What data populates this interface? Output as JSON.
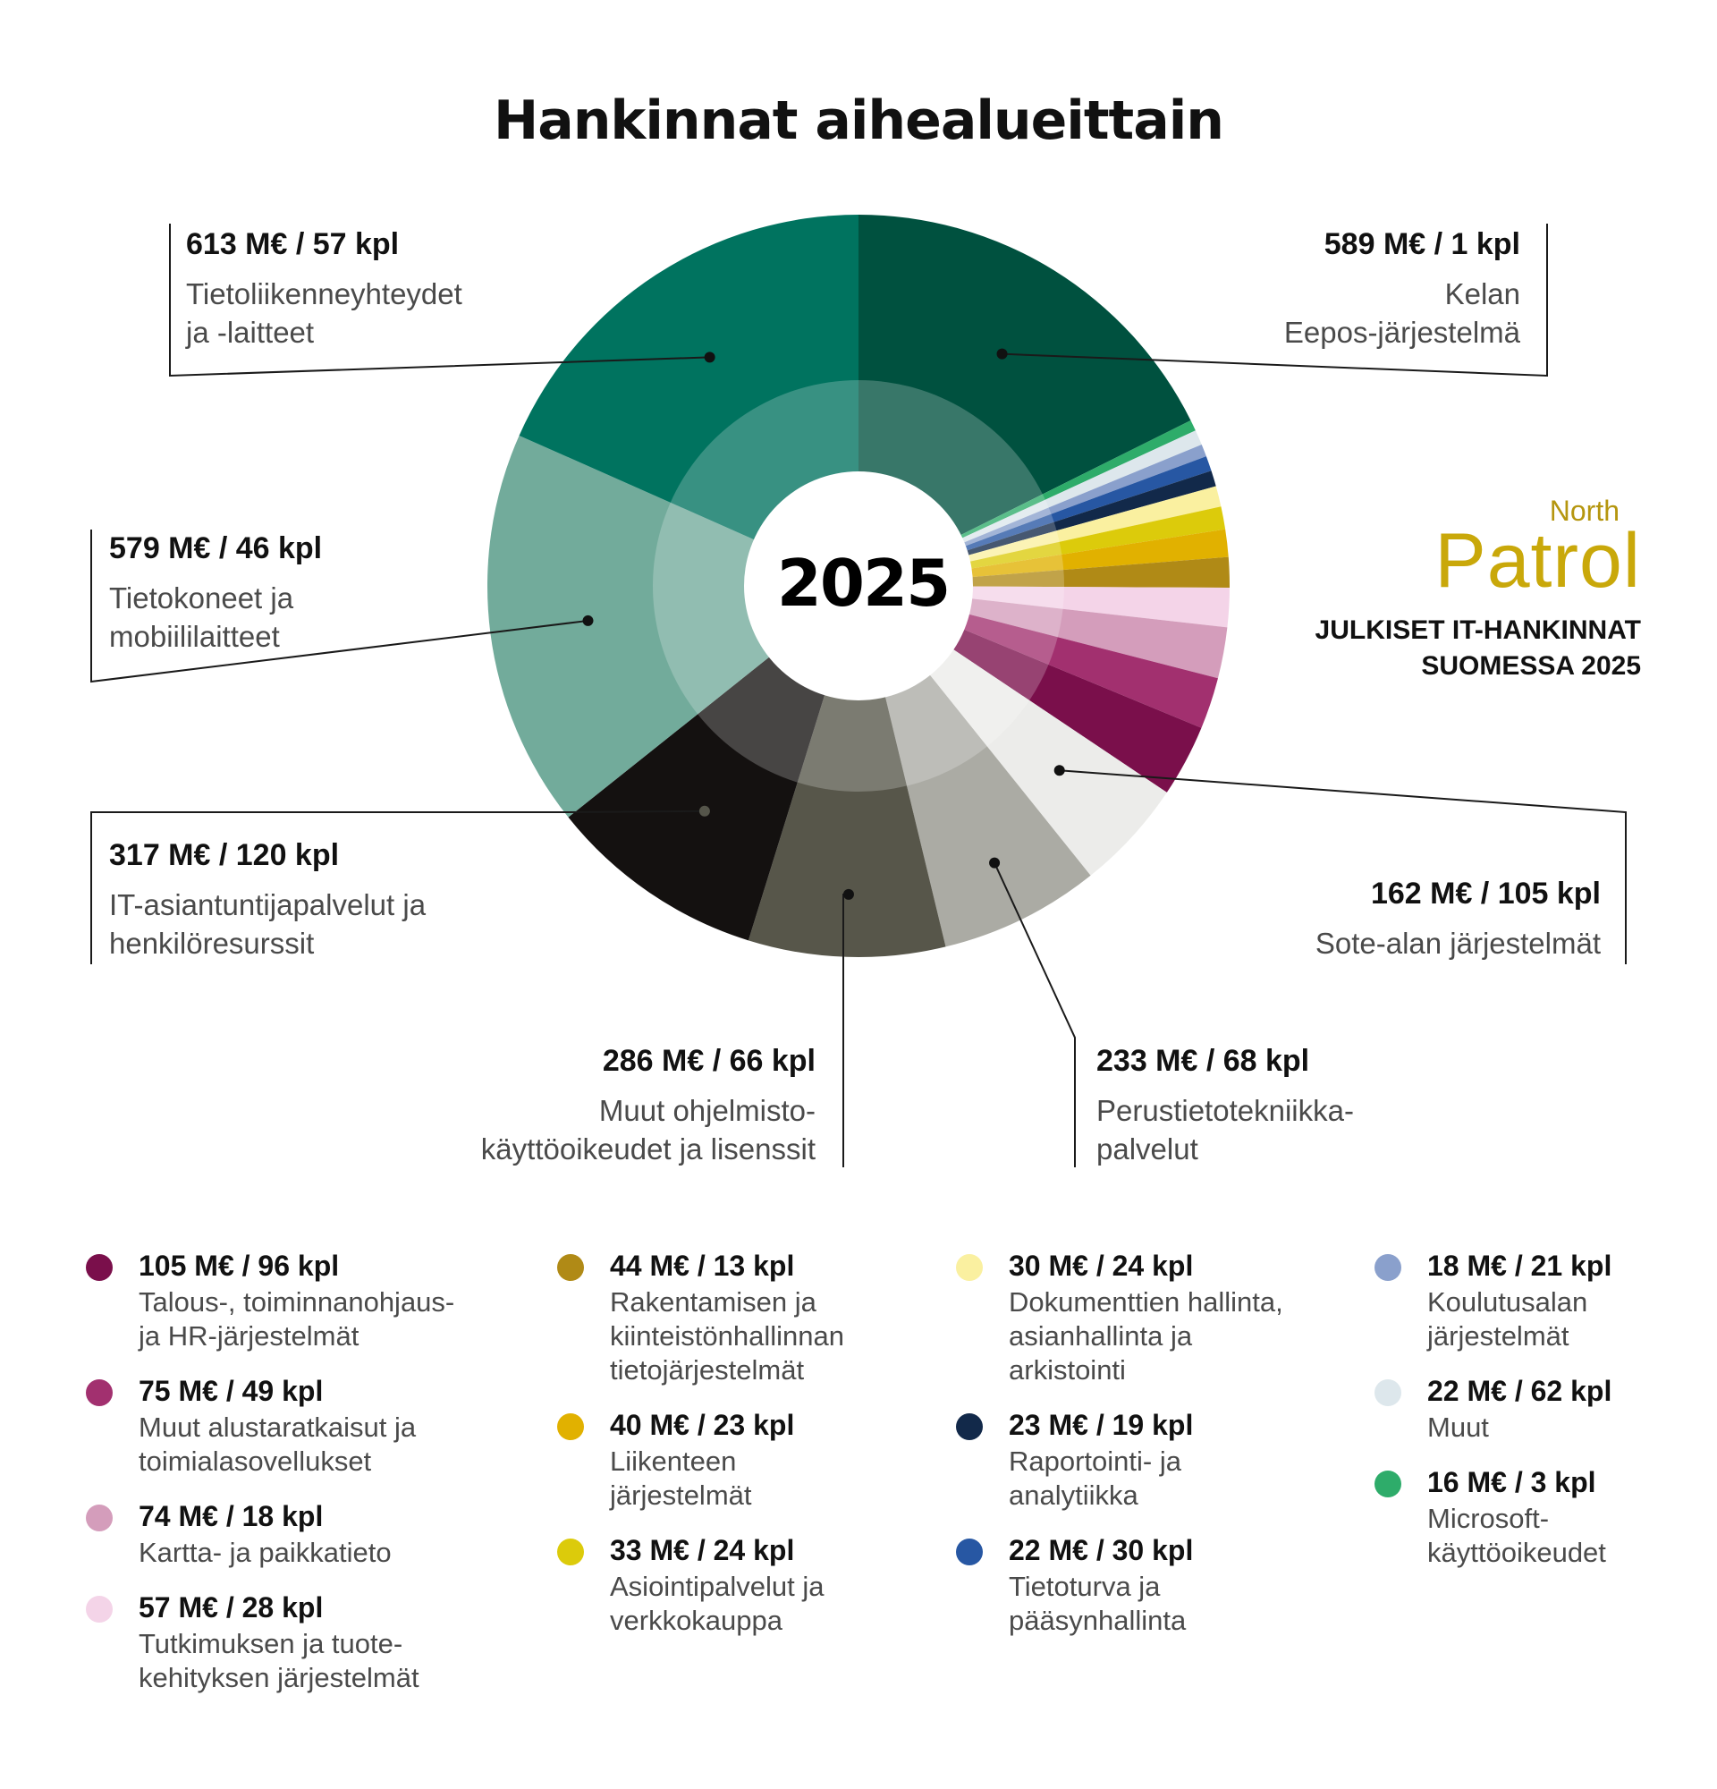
{
  "title": "Hankinnat aihealueittain",
  "center_label": "2025",
  "brand": {
    "north": "North",
    "patrol": "Patrol",
    "report_line1": "JULKISET IT-HANKINNAT",
    "report_line2": "SUOMESSA 2025"
  },
  "chart_data": {
    "type": "pie",
    "variant": "donut",
    "title": "Hankinnat aihealueittain",
    "center_label": "2025",
    "slices": [
      {
        "value_label": "589 M€ / 1 kpl",
        "label": "Kelan\nEepos-järjestelmä",
        "value_meur": 589,
        "count": 1,
        "color": "#00513f"
      },
      {
        "value_label": "16 M€ / 3 kpl",
        "label": "Microsoft-\nkäyttöoikeudet",
        "value_meur": 16,
        "count": 3,
        "color": "#2eac6a"
      },
      {
        "value_label": "22 M€ / 62 kpl",
        "label": "Muut",
        "value_meur": 22,
        "count": 62,
        "color": "#dde7ec"
      },
      {
        "value_label": "18 M€ / 21 kpl",
        "label": "Koulutusalan\njärjestelmät",
        "value_meur": 18,
        "count": 21,
        "color": "#8aa0cc"
      },
      {
        "value_label": "22 M€ / 30 kpl",
        "label": "Tietoturva ja\npääsynhallinta",
        "value_meur": 22,
        "count": 30,
        "color": "#2757a3"
      },
      {
        "value_label": "23 M€ / 19 kpl",
        "label": "Raportointi- ja\nanalytiikka",
        "value_meur": 23,
        "count": 19,
        "color": "#12294a"
      },
      {
        "value_label": "30 M€ / 24 kpl",
        "label": "Dokumenttien hallinta,\nasianhallinta ja\narkistointi",
        "value_meur": 30,
        "count": 24,
        "color": "#faf0a0"
      },
      {
        "value_label": "33 M€ / 24 kpl",
        "label": "Asiointipalvelut ja\nverkkokauppa",
        "value_meur": 33,
        "count": 24,
        "color": "#dccb0b"
      },
      {
        "value_label": "40 M€ / 23 kpl",
        "label": "Liikenteen\njärjestelmät",
        "value_meur": 40,
        "count": 23,
        "color": "#e1b100"
      },
      {
        "value_label": "44 M€ / 13 kpl",
        "label": "Rakentamisen ja\nkiinteistönhallinnan\ntietojärjestelmät",
        "value_meur": 44,
        "count": 13,
        "color": "#b08a16"
      },
      {
        "value_label": "57 M€ / 28 kpl",
        "label": "Tutkimuksen ja tuote-\nkehityksen järjestelmät",
        "value_meur": 57,
        "count": 28,
        "color": "#f4d4e8"
      },
      {
        "value_label": "74 M€ / 18 kpl",
        "label": "Kartta- ja paikkatieto",
        "value_meur": 74,
        "count": 18,
        "color": "#d49dbb"
      },
      {
        "value_label": "75 M€ / 49 kpl",
        "label": "Muut alustaratkaisut ja\ntoimialasovellukset",
        "value_meur": 75,
        "count": 49,
        "color": "#a2306f"
      },
      {
        "value_label": "105 M€ / 96 kpl",
        "label": "Talous-, toiminnanohjaus-\nja HR-järjestelmät",
        "value_meur": 105,
        "count": 96,
        "color": "#7a0f4b"
      },
      {
        "value_label": "162 M€ / 105 kpl",
        "label": "Sote-alan järjestelmät",
        "value_meur": 162,
        "count": 105,
        "color": "#ececea"
      },
      {
        "value_label": "233 M€ / 68 kpl",
        "label": "Perustietotekniikka-\npalvelut",
        "value_meur": 233,
        "count": 68,
        "color": "#ababa4"
      },
      {
        "value_label": "286 M€ / 66 kpl",
        "label": "Muut ohjelmisto-\nkäyttöoikeudet ja lisenssit",
        "value_meur": 286,
        "count": 66,
        "color": "#57564a"
      },
      {
        "value_label": "317 M€ / 120 kpl",
        "label": "IT-asiantuntijapalvelut ja\nhenkilöresurssit",
        "value_meur": 317,
        "count": 120,
        "color": "#141110"
      },
      {
        "value_label": "579 M€ / 46 kpl",
        "label": "Tietokoneet ja\nmobiililaitteet",
        "value_meur": 579,
        "count": 46,
        "color": "#72ab9b"
      },
      {
        "value_label": "613 M€ / 57 kpl",
        "label": "Tietoliikenneyhteydet\nja -laitteet",
        "value_meur": 613,
        "count": 57,
        "color": "#00735f"
      }
    ]
  }
}
